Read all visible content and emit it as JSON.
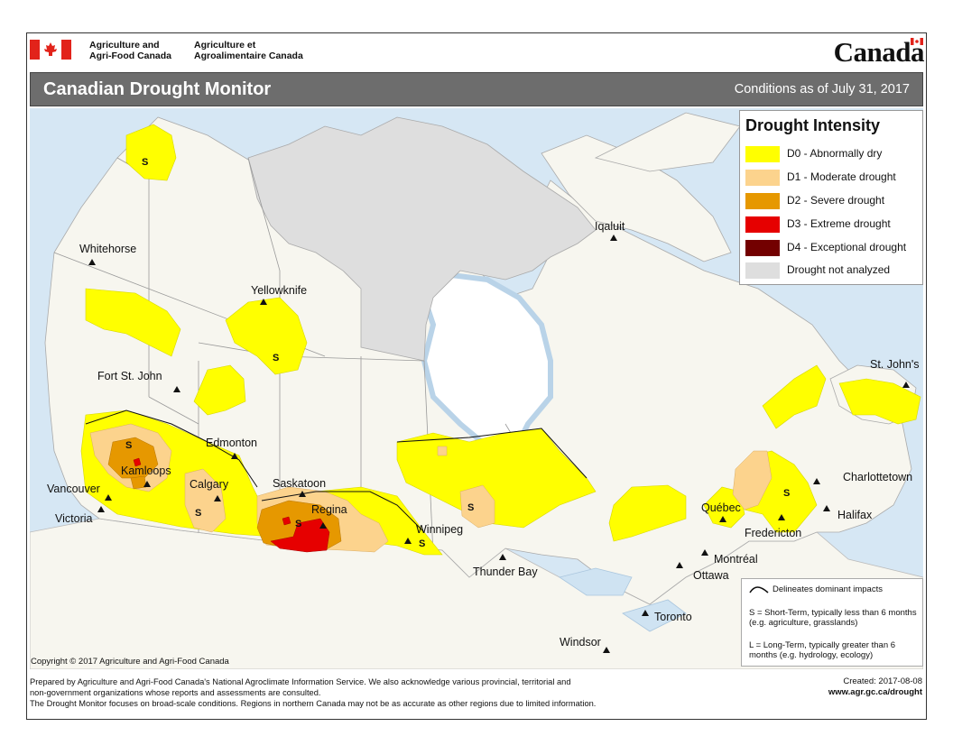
{
  "header": {
    "department_en_line1": "Agriculture and",
    "department_en_line2": "Agri-Food Canada",
    "department_fr_line1": "Agriculture et",
    "department_fr_line2": "Agroalimentaire Canada",
    "wordmark": "Canada"
  },
  "titlebar": {
    "title": "Canadian Drought Monitor",
    "conditions": "Conditions as of July 31, 2017"
  },
  "legend": {
    "title": "Drought Intensity",
    "items": [
      {
        "label": "D0 - Abnormally dry",
        "color": "#ffff00"
      },
      {
        "label": "D1 - Moderate drought",
        "color": "#fcd38d"
      },
      {
        "label": "D2 - Severe drought",
        "color": "#e69800"
      },
      {
        "label": "D3 - Extreme drought",
        "color": "#e60000"
      },
      {
        "label": "D4 - Exceptional drought",
        "color": "#730000"
      },
      {
        "label": "Drought not analyzed",
        "color": "#dedede"
      }
    ]
  },
  "impacts": {
    "line_label": "Delineates dominant impacts",
    "s_text": "S = Short-Term, typically less than 6 months (e.g. agriculture, grasslands)",
    "l_text": "L = Long-Term, typically greater  than 6 months (e.g. hydrology, ecology)"
  },
  "cities": [
    "Whitehorse",
    "Yellowknife",
    "Iqaluit",
    "Fort St. John",
    "Edmonton",
    "Kamloops",
    "Vancouver",
    "Victoria",
    "Calgary",
    "Saskatoon",
    "Regina",
    "Winnipeg",
    "Thunder Bay",
    "Québec",
    "Montréal",
    "Ottawa",
    "Toronto",
    "Windsor",
    "Fredericton",
    "Halifax",
    "Charlottetown",
    "St. John's"
  ],
  "impact_marker": "S",
  "copyright": "Copyright © 2017 Agriculture and Agri-Food Canada",
  "footer": {
    "line1": "Prepared by Agriculture and Agri-Food Canada's National Agroclimate Information Service.  We also acknowledge various provincial, territorial and",
    "line2": "non-government organizations whose reports and assessments are consulted.",
    "line3": "The Drought Monitor focuses on broad-scale conditions.  Regions in northern Canada may not be as accurate as other regions due to limited information."
  },
  "created": {
    "date": "Created: 2017-08-08",
    "url": "www.agr.gc.ca/drought"
  },
  "colors": {
    "land": "#f7f6ef",
    "water": "#cfe3f2",
    "not_analyzed": "#dedede",
    "titlebar": "#6d6d6d",
    "flag_red": "#e2231a"
  }
}
